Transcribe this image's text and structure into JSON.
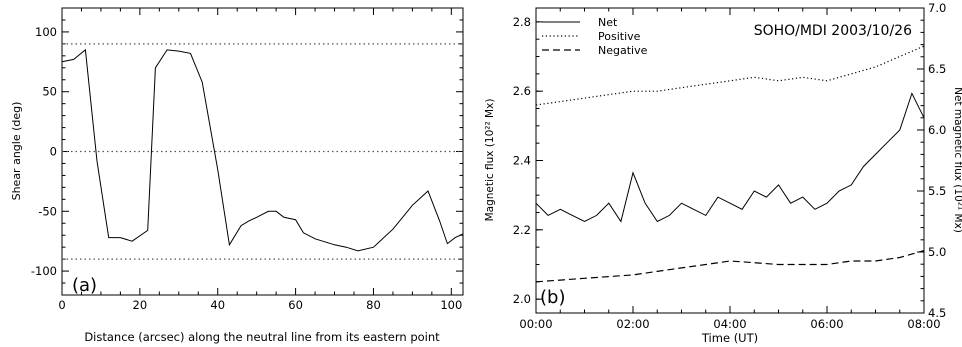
{
  "chart_data": [
    {
      "panel_label": "(a)",
      "type": "line",
      "xlabel": "Distance (arcsec) along the neutral line from its eastern point",
      "ylabel": "Shear angle (deg)",
      "xlim": [
        0,
        103
      ],
      "ylim": [
        -120,
        120
      ],
      "xticks": [
        0,
        20,
        40,
        60,
        80,
        100
      ],
      "yticks": [
        -100,
        -50,
        0,
        50,
        100
      ],
      "reference_lines": [
        90,
        0,
        -90
      ],
      "series": [
        {
          "x": [
            0,
            3,
            6,
            9,
            12,
            15,
            18,
            22,
            24,
            27,
            30,
            33,
            36,
            40,
            43,
            46,
            48,
            50,
            53,
            55,
            57,
            60,
            62,
            65,
            70,
            73,
            76,
            80,
            85,
            90,
            94,
            97,
            99,
            101,
            103
          ],
          "y": [
            75,
            77,
            85,
            -8,
            -72,
            -72,
            -75,
            -66,
            70,
            85,
            84,
            82,
            58,
            -15,
            -78,
            -62,
            -58,
            -55,
            -50,
            -50,
            -55,
            -57,
            -68,
            -73,
            -78,
            -80,
            -83,
            -80,
            -65,
            -45,
            -33,
            -58,
            -77,
            -72,
            -69
          ]
        }
      ]
    },
    {
      "panel_label": "(b)",
      "type": "line",
      "title": "SOHO/MDI 2003/10/26",
      "xlabel": "Time (UT)",
      "ylabel": "Magnetic flux (10²² Mx)",
      "y2label": "Net magnetic flux (10²¹ Mx)",
      "x_tick_labels": [
        "00:00",
        "02:00",
        "04:00",
        "06:00",
        "08:00"
      ],
      "xlim_hours": [
        0,
        8
      ],
      "ylim": [
        1.96,
        2.84
      ],
      "yticks": [
        2.0,
        2.2,
        2.4,
        2.6,
        2.8
      ],
      "y2lim": [
        4.5,
        7.0
      ],
      "y2ticks": [
        4.5,
        5.0,
        5.5,
        6.0,
        6.5,
        7.0
      ],
      "legend_position": "top-left",
      "series": [
        {
          "name": "Net",
          "style": "solid",
          "axis": "right",
          "x_hours": [
            0,
            0.25,
            0.5,
            0.75,
            1,
            1.25,
            1.5,
            1.75,
            2,
            2.25,
            2.5,
            2.75,
            3,
            3.25,
            3.5,
            3.75,
            4,
            4.25,
            4.5,
            4.75,
            5,
            5.25,
            5.5,
            5.75,
            6,
            6.25,
            6.5,
            6.75,
            7,
            7.25,
            7.5,
            7.75,
            8
          ],
          "values": [
            5.4,
            5.3,
            5.35,
            5.3,
            5.25,
            5.3,
            5.4,
            5.25,
            5.65,
            5.4,
            5.25,
            5.3,
            5.4,
            5.35,
            5.3,
            5.45,
            5.4,
            5.35,
            5.5,
            5.45,
            5.55,
            5.4,
            5.45,
            5.35,
            5.4,
            5.5,
            5.55,
            5.7,
            5.8,
            5.9,
            6.0,
            6.3,
            6.1
          ]
        },
        {
          "name": "Positive",
          "style": "dotted",
          "axis": "left",
          "x_hours": [
            0,
            0.5,
            1,
            1.5,
            2,
            2.5,
            3,
            3.5,
            4,
            4.5,
            5,
            5.5,
            6,
            6.5,
            7,
            7.5,
            8
          ],
          "values": [
            2.56,
            2.57,
            2.58,
            2.59,
            2.6,
            2.6,
            2.61,
            2.62,
            2.63,
            2.64,
            2.63,
            2.64,
            2.63,
            2.65,
            2.67,
            2.7,
            2.73
          ]
        },
        {
          "name": "Negative",
          "style": "dashed",
          "axis": "left",
          "x_hours": [
            0,
            0.5,
            1,
            1.5,
            2,
            2.5,
            3,
            3.5,
            4,
            4.5,
            5,
            5.5,
            6,
            6.5,
            7,
            7.5,
            8
          ],
          "values": [
            2.05,
            2.055,
            2.06,
            2.065,
            2.07,
            2.08,
            2.09,
            2.1,
            2.11,
            2.105,
            2.1,
            2.1,
            2.1,
            2.11,
            2.11,
            2.12,
            2.14
          ]
        }
      ]
    }
  ]
}
